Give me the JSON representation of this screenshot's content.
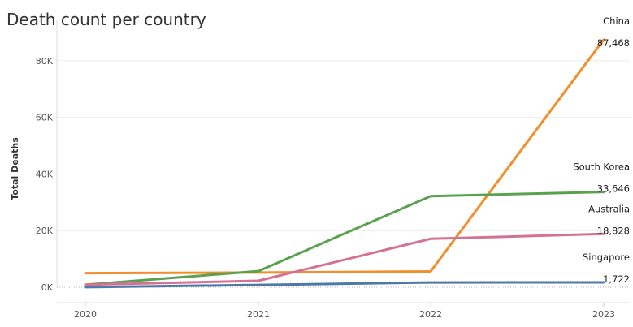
{
  "title": "Death count per country",
  "chart_data": {
    "type": "line",
    "title": "Death count per country",
    "xlabel": "",
    "ylabel": "Total Deaths",
    "x": [
      "2020",
      "2021",
      "2022",
      "2023"
    ],
    "ylim": [
      0,
      90000
    ],
    "yticks": [
      0,
      20000,
      40000,
      60000,
      80000
    ],
    "ytick_labels": [
      "0K",
      "20K",
      "40K",
      "60K",
      "80K"
    ],
    "grid": true,
    "legend": "end-of-line labels",
    "series": [
      {
        "name": "China",
        "color": "#F28E2B",
        "values": [
          5000,
          5200,
          5600,
          87468
        ],
        "end_value_label": "87,468"
      },
      {
        "name": "South Korea",
        "color": "#59A14F",
        "values": [
          900,
          5700,
          32200,
          33646
        ],
        "end_value_label": "33,646"
      },
      {
        "name": "Australia",
        "color": "#D37295",
        "values": [
          900,
          2300,
          17100,
          18828
        ],
        "end_value_label": "18,828"
      },
      {
        "name": "Singapore",
        "color": "#4E79A7",
        "values": [
          30,
          820,
          1700,
          1722
        ],
        "end_value_label": "1,722"
      }
    ]
  }
}
